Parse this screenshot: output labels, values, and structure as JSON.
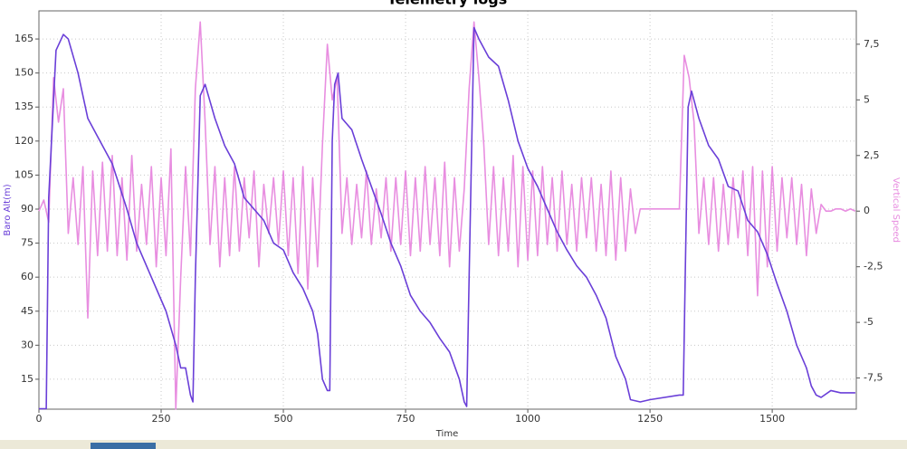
{
  "chart_data": {
    "type": "line",
    "title": "Telemetry logs",
    "x_label": "Time",
    "y_label": "Baro Alt(m)",
    "y2_label": "Vertical Speed",
    "xlim": [
      0,
      1672
    ],
    "xticks": [
      0,
      250,
      500,
      750,
      1000,
      1250,
      1500
    ],
    "ylim": [
      1.8,
      177.4
    ],
    "yticks": [
      15,
      30,
      45,
      60,
      75,
      90,
      105,
      120,
      135,
      150,
      165
    ],
    "y2lim": [
      -8.9,
      9.0
    ],
    "y2ticks": [
      {
        "value": -7.5,
        "label": "-7,5"
      },
      -5,
      {
        "value": -2.5,
        "label": "-2,5"
      },
      0,
      {
        "value": 2.5,
        "label": "2,5"
      },
      5,
      {
        "value": 7.5,
        "label": "7,5"
      }
    ],
    "grid": true,
    "series": [
      {
        "name": "Vertical Speed",
        "color": "#e88ee0",
        "axis": "y2",
        "x": [
          0,
          10,
          20,
          30,
          40,
          50,
          60,
          70,
          80,
          90,
          100,
          110,
          120,
          130,
          140,
          150,
          160,
          170,
          180,
          190,
          200,
          210,
          220,
          230,
          240,
          250,
          260,
          270,
          280,
          290,
          300,
          310,
          320,
          330,
          340,
          350,
          360,
          370,
          380,
          390,
          400,
          410,
          420,
          430,
          440,
          450,
          460,
          470,
          480,
          490,
          500,
          510,
          520,
          530,
          540,
          550,
          560,
          570,
          580,
          590,
          600,
          610,
          620,
          630,
          640,
          650,
          660,
          670,
          680,
          690,
          700,
          710,
          720,
          730,
          740,
          750,
          760,
          770,
          780,
          790,
          800,
          810,
          820,
          830,
          840,
          850,
          860,
          870,
          880,
          890,
          900,
          910,
          920,
          930,
          940,
          950,
          960,
          970,
          980,
          990,
          1000,
          1010,
          1020,
          1030,
          1040,
          1050,
          1060,
          1070,
          1080,
          1090,
          1100,
          1110,
          1120,
          1130,
          1140,
          1150,
          1160,
          1170,
          1180,
          1190,
          1200,
          1210,
          1220,
          1230,
          1240,
          1250,
          1260,
          1270,
          1280,
          1290,
          1300,
          1310,
          1320,
          1330,
          1340,
          1350,
          1360,
          1370,
          1380,
          1390,
          1400,
          1410,
          1420,
          1430,
          1440,
          1450,
          1460,
          1470,
          1480,
          1490,
          1500,
          1510,
          1520,
          1530,
          1540,
          1550,
          1560,
          1570,
          1580,
          1590,
          1600,
          1610,
          1620,
          1630,
          1640,
          1650,
          1660,
          1670
        ],
        "values": [
          0,
          0.5,
          -0.5,
          6,
          4,
          5.5,
          -1,
          1.5,
          -1.5,
          2,
          -4.8,
          1.8,
          -2,
          2.2,
          -1.8,
          2.5,
          -2,
          1.5,
          -2.2,
          2.5,
          -1.8,
          1.2,
          -1.5,
          2,
          -2.5,
          1.5,
          -2,
          2.8,
          -8.9,
          -3,
          2,
          -2,
          5.5,
          8.5,
          4,
          -1.5,
          2,
          -2.5,
          1.5,
          -2,
          2,
          -1.8,
          1.5,
          -1.2,
          1.8,
          -2.5,
          1.2,
          -1,
          1.5,
          -1.5,
          1.8,
          -2,
          1.5,
          -2.8,
          2,
          -3.5,
          1.5,
          -2.5,
          3,
          7.5,
          5,
          6,
          -1,
          1.5,
          -1.5,
          1.2,
          -1.2,
          1.8,
          -1.5,
          1,
          -1.2,
          1.5,
          -1.8,
          1.5,
          -1.5,
          1.8,
          -2,
          1.5,
          -1.8,
          2,
          -1.5,
          1.5,
          -2,
          2.2,
          -2.5,
          1.5,
          -1.8,
          1,
          5.5,
          8.5,
          6,
          3,
          -1.5,
          2,
          -2,
          1.5,
          -1.8,
          2.5,
          -2.5,
          2,
          -2.2,
          1.8,
          -2,
          2,
          -1.5,
          1.5,
          -1.8,
          1.8,
          -1.5,
          1.2,
          -1.8,
          1.5,
          -1.2,
          1.5,
          -1.8,
          1.2,
          -2,
          1.8,
          -2.2,
          1.5,
          -1.8,
          1,
          -1,
          0.1,
          0.1,
          0.1,
          0.1,
          0.1,
          0.1,
          0.1,
          0.1,
          0.1,
          7,
          6,
          4,
          -1,
          1.5,
          -1.5,
          1.5,
          -1.8,
          1.2,
          -1.5,
          1.5,
          -1.2,
          1.8,
          -2,
          2,
          -3.8,
          1.8,
          -2.5,
          2,
          -1.8,
          1.5,
          -1.2,
          1.5,
          -1.5,
          1.2,
          -2,
          1,
          -1,
          0.3,
          0,
          0,
          0.1,
          0.1,
          0,
          0.1,
          0
        ]
      },
      {
        "name": "Baro Alt(m)",
        "color": "#6a3fd8",
        "axis": "y",
        "x": [
          0,
          15,
          20,
          35,
          50,
          60,
          80,
          100,
          120,
          150,
          180,
          200,
          230,
          260,
          280,
          290,
          300,
          310,
          315,
          320,
          330,
          340,
          360,
          380,
          400,
          420,
          440,
          460,
          480,
          500,
          520,
          540,
          560,
          570,
          580,
          590,
          595,
          600,
          605,
          612,
          620,
          640,
          660,
          680,
          700,
          720,
          740,
          760,
          780,
          800,
          820,
          840,
          860,
          870,
          875,
          880,
          890,
          900,
          920,
          940,
          960,
          980,
          1000,
          1020,
          1040,
          1060,
          1080,
          1100,
          1120,
          1140,
          1160,
          1180,
          1200,
          1210,
          1230,
          1250,
          1310,
          1318,
          1322,
          1328,
          1335,
          1350,
          1370,
          1390,
          1410,
          1430,
          1450,
          1470,
          1490,
          1510,
          1530,
          1550,
          1570,
          1580,
          1590,
          1600,
          1620,
          1640,
          1670
        ],
        "values": [
          2,
          2,
          95,
          160,
          167,
          165,
          150,
          130,
          122,
          110,
          90,
          75,
          60,
          45,
          30,
          20,
          20,
          8,
          5,
          60,
          140,
          145,
          130,
          118,
          110,
          95,
          90,
          85,
          75,
          72,
          62,
          55,
          45,
          35,
          15,
          10,
          10,
          120,
          145,
          150,
          130,
          125,
          112,
          100,
          88,
          75,
          65,
          52,
          45,
          40,
          33,
          27,
          15,
          5,
          3,
          60,
          170,
          165,
          157,
          153,
          138,
          120,
          108,
          100,
          90,
          80,
          72,
          65,
          60,
          52,
          42,
          25,
          15,
          6,
          5,
          6,
          8,
          8,
          60,
          135,
          142,
          130,
          118,
          112,
          100,
          98,
          85,
          80,
          70,
          57,
          45,
          30,
          20,
          12,
          8,
          7,
          10,
          9,
          9
        ]
      }
    ]
  }
}
